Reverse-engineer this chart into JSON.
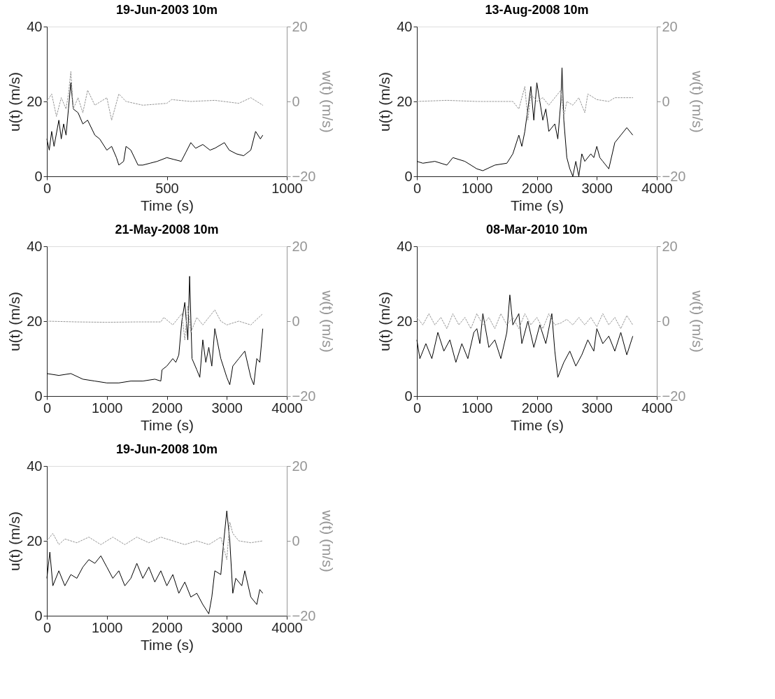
{
  "chart_data": [
    {
      "type": "line",
      "title": "19-Jun-2003 10m",
      "xlabel": "Time (s)",
      "ylabel": "u(t) (m/s)",
      "y2label": "w(t) (m/s)",
      "xlim": [
        0,
        1000
      ],
      "xticks": [
        0,
        500,
        1000
      ],
      "ylim": [
        0,
        40
      ],
      "yticks": [
        0,
        20,
        40
      ],
      "y2lim": [
        -20,
        20
      ],
      "y2ticks": [
        -20,
        0,
        20
      ],
      "series": [
        {
          "color": "#000000",
          "line_style": "solid",
          "x": [
            0,
            10,
            20,
            30,
            50,
            60,
            70,
            80,
            90,
            100,
            110,
            130,
            150,
            170,
            200,
            220,
            250,
            270,
            290,
            300,
            320,
            330,
            350,
            380,
            400,
            430,
            460,
            500,
            530,
            560,
            580,
            600,
            620,
            650,
            680,
            700,
            740,
            760,
            790,
            820,
            850,
            870,
            890,
            900
          ],
          "values": [
            10,
            7,
            12,
            8,
            15,
            10,
            14,
            11,
            18,
            25,
            18,
            17,
            14,
            15,
            11,
            10,
            7,
            8,
            5,
            3,
            4,
            8,
            7,
            3,
            3,
            3.5,
            4,
            5,
            4.5,
            4,
            6.5,
            9,
            7.5,
            8.5,
            7,
            7.5,
            9,
            7,
            6,
            5.5,
            7,
            12,
            10,
            11
          ]
        },
        {
          "color": "#969696",
          "line_style": "dotted",
          "axis": "y2",
          "x": [
            0,
            20,
            40,
            60,
            80,
            90,
            100,
            110,
            130,
            150,
            170,
            200,
            250,
            270,
            300,
            330,
            400,
            500,
            520,
            600,
            700,
            800,
            850,
            900
          ],
          "values": [
            0,
            2,
            -4,
            1,
            -2,
            2,
            8,
            -2,
            1,
            -3,
            3,
            -1,
            1,
            -5,
            2,
            0,
            -1,
            -0.5,
            0.5,
            0,
            0.3,
            -0.5,
            1,
            -1
          ]
        }
      ]
    },
    {
      "type": "line",
      "title": "13-Aug-2008 10m",
      "xlabel": "Time (s)",
      "ylabel": "u(t) (m/s)",
      "y2label": "w(t) (m/s)",
      "xlim": [
        0,
        4000
      ],
      "xticks": [
        0,
        1000,
        2000,
        3000,
        4000
      ],
      "ylim": [
        0,
        40
      ],
      "yticks": [
        0,
        20,
        40
      ],
      "y2lim": [
        -20,
        20
      ],
      "y2ticks": [
        -20,
        0,
        20
      ],
      "series": [
        {
          "color": "#000000",
          "line_style": "solid",
          "x": [
            0,
            100,
            300,
            500,
            600,
            800,
            1000,
            1100,
            1300,
            1500,
            1600,
            1700,
            1750,
            1800,
            1850,
            1900,
            1950,
            2000,
            2100,
            2150,
            2200,
            2300,
            2350,
            2400,
            2420,
            2450,
            2500,
            2550,
            2600,
            2650,
            2700,
            2750,
            2800,
            2900,
            2950,
            3000,
            3050,
            3100,
            3200,
            3300,
            3400,
            3500,
            3600
          ],
          "values": [
            4,
            3.5,
            4,
            3,
            5,
            4,
            2,
            1.5,
            3,
            3.5,
            6,
            11,
            8,
            12,
            18,
            24,
            15,
            25,
            15,
            18,
            12,
            14,
            10,
            20,
            29,
            15,
            5,
            2,
            0,
            4,
            0,
            6,
            4,
            6,
            5,
            8,
            5,
            4,
            2,
            9,
            11,
            13,
            11
          ]
        },
        {
          "color": "#969696",
          "line_style": "dotted",
          "axis": "y2",
          "x": [
            0,
            500,
            1000,
            1600,
            1700,
            1800,
            1850,
            1900,
            2000,
            2100,
            2200,
            2400,
            2450,
            2500,
            2600,
            2700,
            2800,
            2850,
            3000,
            3200,
            3300,
            3600
          ],
          "values": [
            0,
            0.3,
            0,
            0,
            -2,
            4,
            -5,
            2,
            0,
            1,
            -1,
            3,
            -4,
            0,
            -1,
            1,
            -3,
            2,
            0.5,
            0,
            1,
            1
          ]
        }
      ]
    },
    {
      "type": "line",
      "title": "21-May-2008 10m",
      "xlabel": "Time (s)",
      "ylabel": "u(t) (m/s)",
      "y2label": "w(t) (m/s)",
      "xlim": [
        0,
        4000
      ],
      "xticks": [
        0,
        1000,
        2000,
        3000,
        4000
      ],
      "ylim": [
        0,
        40
      ],
      "yticks": [
        0,
        20,
        40
      ],
      "y2lim": [
        -20,
        20
      ],
      "y2ticks": [
        -20,
        0,
        20
      ],
      "series": [
        {
          "color": "#000000",
          "line_style": "solid",
          "x": [
            0,
            200,
            400,
            600,
            800,
            1000,
            1200,
            1400,
            1600,
            1800,
            1900,
            1920,
            2000,
            2100,
            2150,
            2200,
            2250,
            2300,
            2350,
            2380,
            2420,
            2500,
            2550,
            2600,
            2650,
            2700,
            2750,
            2800,
            2900,
            3000,
            3050,
            3100,
            3200,
            3300,
            3400,
            3450,
            3500,
            3550,
            3600
          ],
          "values": [
            6,
            5.5,
            6,
            4.5,
            4,
            3.5,
            3.5,
            4,
            4,
            4.5,
            4,
            7,
            8,
            10,
            9,
            11,
            20,
            25,
            15,
            32,
            10,
            7,
            5,
            15,
            9,
            13,
            8,
            18,
            10,
            5,
            3,
            8,
            10,
            12,
            5,
            3,
            10,
            9,
            18
          ]
        },
        {
          "color": "#969696",
          "line_style": "dotted",
          "axis": "y2",
          "x": [
            0,
            500,
            1000,
            1500,
            1900,
            1950,
            2100,
            2250,
            2300,
            2350,
            2400,
            2500,
            2600,
            2700,
            2800,
            2900,
            3000,
            3200,
            3400,
            3600
          ],
          "values": [
            0,
            -0.2,
            -0.3,
            -0.2,
            -0.2,
            1,
            -1,
            2,
            -5,
            4,
            -3,
            1,
            -1,
            1,
            3,
            0,
            -1,
            0,
            -1,
            2
          ]
        }
      ]
    },
    {
      "type": "line",
      "title": "08-Mar-2010 10m",
      "xlabel": "Time (s)",
      "ylabel": "u(t) (m/s)",
      "y2label": "w(t) (m/s)",
      "xlim": [
        0,
        4000
      ],
      "xticks": [
        0,
        1000,
        2000,
        3000,
        4000
      ],
      "ylim": [
        0,
        40
      ],
      "yticks": [
        0,
        20,
        40
      ],
      "y2lim": [
        -20,
        20
      ],
      "y2ticks": [
        -20,
        0,
        20
      ],
      "series": [
        {
          "color": "#000000",
          "line_style": "solid",
          "x": [
            0,
            50,
            150,
            250,
            350,
            450,
            550,
            650,
            750,
            850,
            950,
            1000,
            1050,
            1100,
            1200,
            1300,
            1400,
            1500,
            1550,
            1600,
            1700,
            1750,
            1850,
            1950,
            2050,
            2150,
            2250,
            2300,
            2350,
            2450,
            2550,
            2650,
            2750,
            2850,
            2950,
            3000,
            3100,
            3200,
            3300,
            3400,
            3500,
            3600
          ],
          "values": [
            15,
            10,
            14,
            10,
            17,
            12,
            15,
            9,
            14,
            10,
            17,
            18,
            14,
            22,
            13,
            15,
            10,
            17,
            27,
            19,
            22,
            14,
            20,
            13,
            19,
            14,
            22,
            12,
            5,
            9,
            12,
            8,
            11,
            15,
            12,
            18,
            14,
            16,
            12,
            17,
            11,
            16
          ]
        },
        {
          "color": "#969696",
          "line_style": "dotted",
          "axis": "y2",
          "x": [
            0,
            100,
            200,
            300,
            400,
            500,
            600,
            700,
            800,
            900,
            1000,
            1100,
            1200,
            1300,
            1400,
            1500,
            1600,
            1700,
            1800,
            1900,
            2000,
            2100,
            2200,
            2300,
            2400,
            2500,
            2600,
            2700,
            2800,
            2900,
            3000,
            3100,
            3200,
            3300,
            3400,
            3500,
            3600
          ],
          "values": [
            1,
            -1,
            2,
            -1,
            1,
            -2,
            2,
            -1,
            1,
            -2,
            2,
            -1,
            1,
            -2,
            2,
            -1,
            1,
            -2,
            2,
            -1,
            1,
            -2,
            2,
            -1,
            -0.5,
            0.5,
            -1,
            1,
            -1,
            1,
            -1.5,
            2,
            -1,
            1,
            -2,
            1.5,
            -1
          ]
        }
      ]
    },
    {
      "type": "line",
      "title": "19-Jun-2008 10m",
      "xlabel": "Time (s)",
      "ylabel": "u(t) (m/s)",
      "y2label": "w(t) (m/s)",
      "xlim": [
        0,
        4000
      ],
      "xticks": [
        0,
        1000,
        2000,
        3000,
        4000
      ],
      "ylim": [
        0,
        40
      ],
      "yticks": [
        0,
        20,
        40
      ],
      "y2lim": [
        -20,
        20
      ],
      "y2ticks": [
        -20,
        0,
        20
      ],
      "series": [
        {
          "color": "#000000",
          "line_style": "solid",
          "x": [
            0,
            50,
            100,
            200,
            300,
            400,
            500,
            600,
            700,
            800,
            900,
            1000,
            1100,
            1200,
            1300,
            1400,
            1500,
            1600,
            1700,
            1800,
            1900,
            2000,
            2100,
            2200,
            2300,
            2400,
            2500,
            2600,
            2700,
            2750,
            2800,
            2900,
            2950,
            3000,
            3050,
            3100,
            3150,
            3250,
            3300,
            3400,
            3500,
            3550,
            3600
          ],
          "values": [
            10,
            17,
            8,
            12,
            8,
            11,
            10,
            13,
            15,
            14,
            16,
            13,
            10,
            12,
            8,
            10,
            14,
            10,
            13,
            9,
            12,
            8,
            11,
            6,
            9,
            5,
            6,
            3,
            0.5,
            5,
            12,
            11,
            20,
            28,
            20,
            6,
            10,
            8,
            12,
            5,
            3,
            7,
            6
          ]
        },
        {
          "color": "#969696",
          "line_style": "dotted",
          "axis": "y2",
          "x": [
            0,
            100,
            200,
            300,
            500,
            700,
            900,
            1100,
            1300,
            1500,
            1700,
            1900,
            2100,
            2300,
            2500,
            2700,
            2900,
            3000,
            3050,
            3100,
            3200,
            3400,
            3600
          ],
          "values": [
            0,
            2,
            -1,
            0.5,
            -0.5,
            1,
            -1,
            1,
            -1,
            1,
            -0.5,
            1,
            0,
            -1,
            0,
            -1,
            1,
            -5,
            5,
            2,
            0,
            -0.5,
            0
          ]
        }
      ]
    }
  ]
}
